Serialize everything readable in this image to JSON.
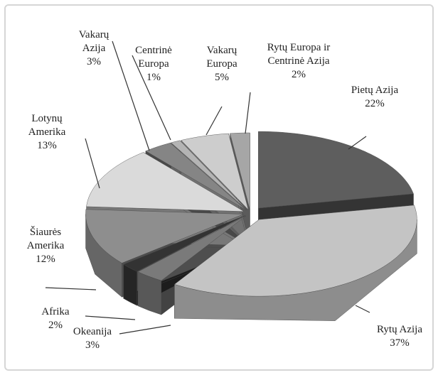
{
  "chart_data": {
    "type": "pie",
    "categories": [
      "Pietų Azija",
      "Rytų Azija",
      "Okeanija",
      "Afrika",
      "Šiaurės Amerika",
      "Lotynų Amerika",
      "Vakarų Azija",
      "Centrinė Europa",
      "Vakarų Europa",
      "Rytų Europa ir Centrinė Azija"
    ],
    "values": [
      22,
      37,
      3,
      2,
      12,
      13,
      3,
      1,
      5,
      2
    ],
    "value_labels": [
      "22%",
      "37%",
      "3%",
      "2%",
      "12%",
      "13%",
      "3%",
      "1%",
      "5%",
      "2%"
    ],
    "colors": [
      "#5e5e5e",
      "#c4c4c4",
      "#7a7a7a",
      "#333333",
      "#8e8e8e",
      "#dadada",
      "#858585",
      "#b4b4b4",
      "#cdcdcd",
      "#a6a6a6"
    ]
  }
}
